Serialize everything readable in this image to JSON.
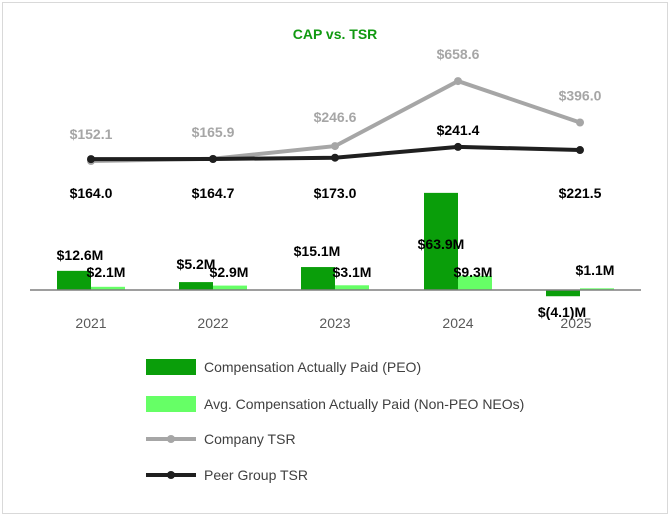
{
  "chart_data": {
    "type": "bar+line",
    "title": "CAP vs. TSR",
    "categories": [
      "2021",
      "2022",
      "2023",
      "2024",
      "2025"
    ],
    "bar_series": [
      {
        "name": "Compensation Actually Paid (PEO)",
        "values": [
          12.6,
          5.2,
          15.1,
          63.9,
          -4.1
        ],
        "labels": [
          "$12.6M",
          "$5.2M",
          "$15.1M",
          "$63.9M",
          "$(4.1)M"
        ]
      },
      {
        "name": "Avg. Compensation Actually Paid (Non-PEO NEOs)",
        "values": [
          2.1,
          2.9,
          3.1,
          9.3,
          1.1
        ],
        "labels": [
          "$2.1M",
          "$2.9M",
          "$3.1M",
          "$9.3M",
          "$1.1M"
        ]
      }
    ],
    "line_series": [
      {
        "name": "Company TSR",
        "values": [
          152.1,
          165.9,
          246.6,
          658.6,
          396.0
        ],
        "labels": [
          "$152.1",
          "$165.9",
          "$246.6",
          "$658.6",
          "$396.0"
        ]
      },
      {
        "name": "Peer Group TSR",
        "values": [
          164.0,
          164.7,
          173.0,
          241.4,
          221.5
        ],
        "labels": [
          "$164.0",
          "$164.7",
          "$173.0",
          "$241.4",
          "$221.5"
        ]
      }
    ],
    "legend": [
      "Compensation Actually Paid (PEO)",
      "Avg. Compensation Actually Paid (Non-PEO NEOs)",
      "Company TSR",
      "Peer Group TSR"
    ],
    "legend_position": "bottom"
  },
  "colors": {
    "title": "#119911",
    "peo_bar": "#0a9e0a",
    "neo_bar": "#66ff66",
    "company_line": "#a6a6a6",
    "peer_line": "#1f1f1f",
    "axis": "#7f7f7f"
  }
}
